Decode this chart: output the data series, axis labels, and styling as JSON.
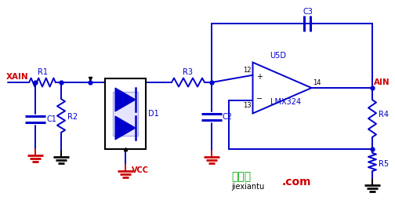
{
  "bg_color": "#ffffff",
  "wire_color": "#0000cc",
  "label_color": "#cc0000",
  "black_color": "#000000",
  "comp_color": "#0000cc",
  "green_color": "#00aa00",
  "watermark1": "接线图",
  "watermark2": "jiexiantu",
  "watermark3": ".com",
  "labels": {
    "XAIN": "XAIN",
    "AIN": "AIN",
    "R1": "R1",
    "R2": "R2",
    "R3": "R3",
    "R4": "R4",
    "R5": "R5",
    "C1": "C1",
    "C2": "C2",
    "C3": "C3",
    "D1": "D1",
    "U5D": "U5D",
    "LMX324": "LMX324",
    "VCC": "VCC",
    "pin12": "12",
    "pin13": "13",
    "pin14": "14"
  }
}
